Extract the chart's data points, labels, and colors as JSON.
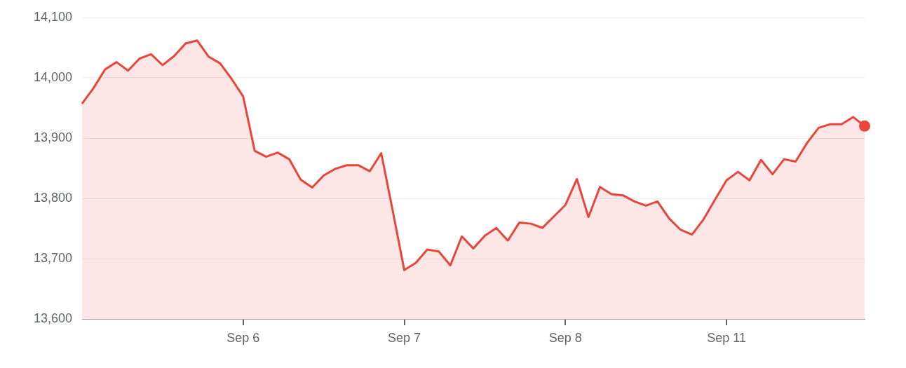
{
  "chart_data": {
    "type": "area",
    "categories": [
      null,
      null,
      null,
      null,
      null,
      null,
      null,
      null,
      null,
      null,
      null,
      null,
      null,
      null,
      "Sep 6",
      null,
      null,
      null,
      null,
      null,
      null,
      null,
      null,
      null,
      null,
      null,
      null,
      null,
      "Sep 7",
      null,
      null,
      null,
      null,
      null,
      null,
      null,
      null,
      null,
      null,
      null,
      null,
      null,
      "Sep 8",
      null,
      null,
      null,
      null,
      null,
      null,
      null,
      null,
      null,
      null,
      null,
      null,
      null,
      "Sep 11",
      null,
      null,
      null,
      null,
      null,
      null,
      null,
      null,
      null,
      null,
      null,
      null
    ],
    "series": [
      {
        "color": "#e8453c",
        "values": [
          13957,
          13983,
          14014,
          14026,
          14012,
          14032,
          14039,
          14021,
          14036,
          14057,
          14062,
          14035,
          14024,
          13998,
          13969,
          13879,
          13869,
          13876,
          13865,
          13831,
          13818,
          13838,
          13849,
          13855,
          13855,
          13845,
          13875,
          13779,
          13681,
          13693,
          13715,
          13712,
          13689,
          13737,
          13717,
          13738,
          13751,
          13730,
          13760,
          13758,
          13751,
          13770,
          13789,
          13832,
          13769,
          13819,
          13807,
          13805,
          13795,
          13788,
          13795,
          13767,
          13748,
          13740,
          13765,
          13798,
          13830,
          13844,
          13830,
          13864,
          13840,
          13865,
          13861,
          13892,
          13917,
          13923,
          13923,
          13935,
          13920
        ]
      }
    ],
    "ylim": [
      13600,
      14100
    ],
    "yticks": [
      {
        "value": 13600,
        "label": "13,600"
      },
      {
        "value": 13700,
        "label": "13,700"
      },
      {
        "value": 13800,
        "label": "13,800"
      },
      {
        "value": 13900,
        "label": "13,900"
      },
      {
        "value": 14000,
        "label": "14,000"
      },
      {
        "value": 14100,
        "label": "14,100"
      }
    ],
    "grid": "y",
    "legend": false,
    "marker": "none",
    "line_style": "solid"
  }
}
